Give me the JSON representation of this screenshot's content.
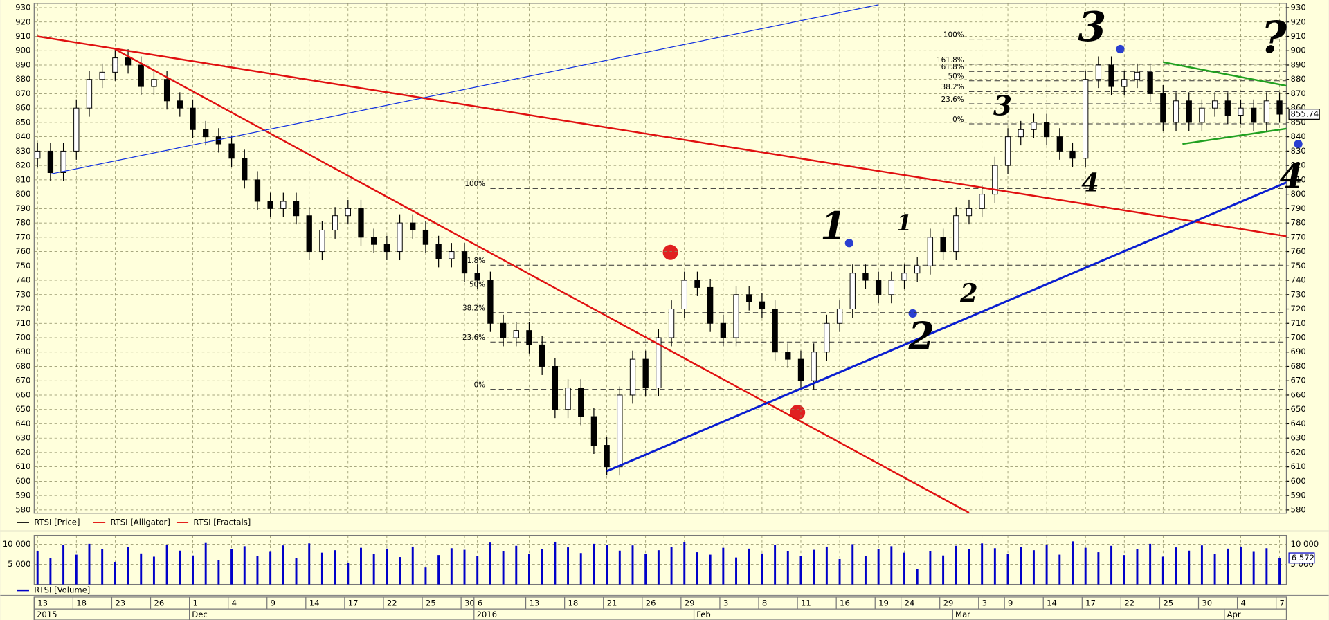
{
  "chart_data": {
    "type": "candlestick",
    "categories": [
      "13",
      null,
      null,
      "18",
      null,
      null,
      "23",
      null,
      null,
      "26",
      null,
      null,
      "1",
      null,
      null,
      "4",
      null,
      null,
      "9",
      null,
      null,
      "14",
      null,
      null,
      "17",
      null,
      null,
      "22",
      null,
      null,
      "25",
      null,
      null,
      "30",
      "6",
      null,
      null,
      null,
      "13",
      null,
      null,
      "18",
      null,
      null,
      "21",
      null,
      null,
      "26",
      null,
      null,
      "29",
      null,
      null,
      "3",
      null,
      null,
      "8",
      null,
      null,
      "11",
      null,
      null,
      "16",
      null,
      null,
      "19",
      null,
      "24",
      null,
      null,
      "29",
      null,
      null,
      "3",
      null,
      "9",
      null,
      null,
      "14",
      null,
      null,
      "17",
      null,
      null,
      "22",
      null,
      null,
      "25",
      null,
      null,
      "30",
      null,
      null,
      "4",
      null,
      null,
      "7"
    ],
    "period_labels": [
      "2015",
      null,
      null,
      null,
      null,
      null,
      null,
      null,
      null,
      null,
      null,
      null,
      "Dec",
      null,
      null,
      null,
      null,
      null,
      null,
      null,
      null,
      null,
      null,
      null,
      null,
      null,
      null,
      null,
      null,
      null,
      null,
      null,
      null,
      null,
      "2016",
      null,
      null,
      null,
      null,
      null,
      null,
      null,
      null,
      null,
      null,
      null,
      null,
      null,
      null,
      null,
      null,
      "Feb",
      null,
      null,
      null,
      null,
      null,
      null,
      null,
      null,
      null,
      null,
      null,
      null,
      null,
      null,
      null,
      null,
      null,
      null,
      null,
      "Mar",
      null,
      null,
      null,
      null,
      null,
      null,
      null,
      null,
      null,
      null,
      null,
      null,
      null,
      null,
      null,
      null,
      null,
      null,
      null,
      null,
      "Apr",
      null,
      null,
      null,
      null
    ],
    "legend": [
      {
        "name": "RTSI [Price]",
        "color": "#000000"
      },
      {
        "name": "RTSI [Alligator]",
        "color": "#e00000"
      },
      {
        "name": "RTSI [Fractals]",
        "color": "#e00000"
      }
    ],
    "open": [
      825,
      830,
      815,
      830,
      860,
      880,
      885,
      895,
      890,
      875,
      880,
      865,
      860,
      845,
      840,
      835,
      825,
      810,
      795,
      790,
      795,
      785,
      760,
      775,
      785,
      790,
      770,
      765,
      760,
      780,
      775,
      765,
      755,
      760,
      745,
      740,
      710,
      700,
      705,
      695,
      680,
      650,
      665,
      645,
      625,
      610,
      660,
      685,
      665,
      700,
      720,
      740,
      735,
      710,
      700,
      730,
      725,
      720,
      690,
      685,
      670,
      690,
      710,
      720,
      745,
      740,
      730,
      740,
      745,
      750,
      770,
      760,
      785,
      790,
      800,
      820,
      840,
      845,
      850,
      840,
      830,
      825,
      880,
      890,
      875,
      880,
      885,
      870,
      850,
      865,
      850,
      860,
      865,
      855,
      860,
      850,
      865
    ],
    "high": [
      836,
      836,
      836,
      866,
      886,
      891,
      901,
      901,
      896,
      886,
      886,
      871,
      866,
      851,
      846,
      841,
      831,
      816,
      801,
      801,
      801,
      791,
      781,
      791,
      796,
      796,
      776,
      771,
      786,
      786,
      781,
      771,
      766,
      766,
      751,
      746,
      716,
      711,
      711,
      701,
      686,
      671,
      671,
      651,
      631,
      666,
      691,
      691,
      706,
      726,
      746,
      746,
      741,
      716,
      736,
      736,
      731,
      726,
      696,
      691,
      696,
      716,
      726,
      751,
      751,
      746,
      746,
      751,
      756,
      776,
      776,
      791,
      796,
      806,
      826,
      846,
      851,
      856,
      856,
      846,
      836,
      886,
      896,
      896,
      886,
      891,
      891,
      876,
      871,
      871,
      866,
      871,
      871,
      866,
      866,
      871,
      871
    ],
    "low": [
      819,
      809,
      809,
      824,
      854,
      874,
      879,
      884,
      869,
      869,
      859,
      854,
      839,
      834,
      829,
      819,
      804,
      789,
      784,
      784,
      779,
      754,
      754,
      769,
      779,
      764,
      759,
      754,
      754,
      769,
      759,
      749,
      749,
      739,
      734,
      704,
      694,
      694,
      689,
      674,
      644,
      644,
      639,
      619,
      604,
      604,
      654,
      659,
      659,
      694,
      714,
      729,
      704,
      694,
      694,
      719,
      714,
      684,
      679,
      664,
      664,
      684,
      704,
      714,
      734,
      724,
      724,
      734,
      739,
      744,
      754,
      754,
      779,
      784,
      794,
      814,
      834,
      839,
      834,
      824,
      819,
      819,
      874,
      869,
      869,
      874,
      864,
      844,
      844,
      844,
      844,
      854,
      849,
      849,
      844,
      844,
      849.74
    ],
    "close": [
      830,
      815,
      830,
      860,
      880,
      885,
      895,
      890,
      875,
      880,
      865,
      860,
      845,
      840,
      835,
      825,
      810,
      795,
      790,
      795,
      785,
      760,
      775,
      785,
      790,
      770,
      765,
      760,
      780,
      775,
      765,
      755,
      760,
      745,
      740,
      710,
      700,
      705,
      695,
      680,
      650,
      665,
      645,
      625,
      610,
      660,
      685,
      665,
      700,
      720,
      740,
      735,
      710,
      700,
      730,
      725,
      720,
      690,
      685,
      670,
      690,
      710,
      720,
      745,
      740,
      730,
      740,
      745,
      750,
      770,
      760,
      785,
      790,
      800,
      820,
      840,
      845,
      850,
      840,
      830,
      825,
      880,
      890,
      875,
      880,
      885,
      870,
      850,
      865,
      850,
      860,
      865,
      855,
      860,
      850,
      865,
      855.74
    ],
    "ylim": [
      580,
      930
    ],
    "yticks": [
      580,
      590,
      600,
      610,
      620,
      630,
      640,
      650,
      660,
      670,
      680,
      690,
      700,
      710,
      720,
      730,
      740,
      750,
      760,
      770,
      780,
      790,
      800,
      810,
      820,
      830,
      840,
      850,
      860,
      870,
      880,
      890,
      900,
      910,
      920,
      930
    ],
    "grid": true,
    "volume": {
      "type": "bar",
      "name": "RTSI [Volume]",
      "color": "#0000c8",
      "values": [
        8200,
        6500,
        9800,
        7400,
        10100,
        8800,
        5600,
        9300,
        7700,
        6900,
        9900,
        8400,
        7200,
        10300,
        6100,
        8700,
        9500,
        7000,
        8100,
        9700,
        6600,
        10200,
        7900,
        8500,
        5400,
        9100,
        7600,
        8900,
        6800,
        9400,
        4200,
        7300,
        9000,
        8600,
        7100,
        10400,
        8300,
        9600,
        7500,
        8800,
        10600,
        9200,
        7800,
        10100,
        9900,
        8400,
        9700,
        7600,
        8500,
        9300,
        10500,
        8000,
        7400,
        9100,
        6700,
        8900,
        7700,
        9800,
        8200,
        7100,
        8600,
        9400,
        6300,
        10000,
        7000,
        8700,
        9500,
        7900,
        3800,
        8300,
        7200,
        9600,
        8800,
        10200,
        9000,
        7600,
        9300,
        8500,
        9900,
        7400,
        10700,
        9100,
        8000,
        9600,
        7300,
        8800,
        10100,
        6900,
        9200,
        8400,
        9700,
        7500,
        8900,
        9400,
        8100,
        9000,
        6572
      ],
      "value_labels": [
        null,
        null,
        null,
        null,
        null,
        null,
        null,
        null,
        null,
        null,
        null,
        null,
        null,
        null,
        null,
        null,
        null,
        null,
        null,
        null,
        null,
        null,
        null,
        null,
        null,
        null,
        null,
        null,
        null,
        null,
        null,
        null,
        null,
        null,
        null,
        null,
        null,
        null,
        null,
        null,
        null,
        null,
        null,
        null,
        null,
        null,
        null,
        null,
        null,
        null,
        null,
        null,
        null,
        null,
        null,
        null,
        null,
        null,
        null,
        null,
        null,
        null,
        null,
        null,
        null,
        null,
        null,
        null,
        null,
        null,
        null,
        null,
        null,
        null,
        null,
        null,
        null,
        null,
        null,
        null,
        null,
        null,
        null,
        null,
        null,
        null,
        null,
        null,
        null,
        null,
        null,
        null,
        null,
        null,
        null,
        null,
        "6 572"
      ],
      "ylim": [
        0,
        12000
      ],
      "yticks": [
        {
          "value": 5000,
          "label": "5 000"
        },
        {
          "value": 10000,
          "label": "10 000"
        }
      ]
    },
    "fibonacci": [
      {
        "from": 35,
        "levels": [
          {
            "label": "100%",
            "value": 804
          },
          {
            "label": "61.8%",
            "value": 750.5
          },
          {
            "label": "50%",
            "value": 734
          },
          {
            "label": "38.2%",
            "value": 717.5
          },
          {
            "label": "23.6%",
            "value": 697
          },
          {
            "label": "0%",
            "value": 664
          }
        ]
      },
      {
        "from": 72,
        "levels": [
          {
            "label": "100%",
            "value": 908
          },
          {
            "label": "161.8%",
            "value": 890.5
          },
          {
            "label": "61.8%",
            "value": 885.5
          },
          {
            "label": "50%",
            "value": 879
          },
          {
            "label": "38.2%",
            "value": 871.5
          },
          {
            "label": "23.6%",
            "value": 863
          },
          {
            "label": "0%",
            "value": 849
          }
        ]
      }
    ],
    "trendlines": [
      {
        "color": "#e01010",
        "width": 2,
        "from": [
          0,
          910
        ],
        "to": [
          97,
          770
        ]
      },
      {
        "color": "#e01010",
        "width": 2,
        "from": [
          6,
          901
        ],
        "to": [
          72,
          578
        ]
      },
      {
        "color": "#1030e0",
        "width": 1,
        "from": [
          1,
          814
        ],
        "to": [
          65,
          932
        ]
      },
      {
        "color": "#0a1ed0",
        "width": 2.5,
        "from": [
          44,
          607
        ],
        "to": [
          97,
          810
        ]
      },
      {
        "color": "#20a020",
        "width": 2,
        "from": [
          87,
          892
        ],
        "to": [
          98,
          873
        ]
      },
      {
        "color": "#20a020",
        "width": 2,
        "from": [
          88.5,
          835
        ],
        "to": [
          99,
          849
        ]
      }
    ],
    "annotations": [
      {
        "text": "1",
        "color": "#2a3fd0"
      },
      {
        "text": "2",
        "color": "#2a3fd0"
      },
      {
        "text": "3",
        "color": "#2a3fd0"
      },
      {
        "text": "?",
        "color": "#2a3fd0"
      },
      {
        "text": "4",
        "color": "#2a3fd0"
      },
      {
        "text": "1",
        "color": "#22a022"
      },
      {
        "text": "2",
        "color": "#22a022"
      },
      {
        "text": "3",
        "color": "#22a022"
      },
      {
        "text": "4",
        "color": "#22a022"
      }
    ]
  }
}
